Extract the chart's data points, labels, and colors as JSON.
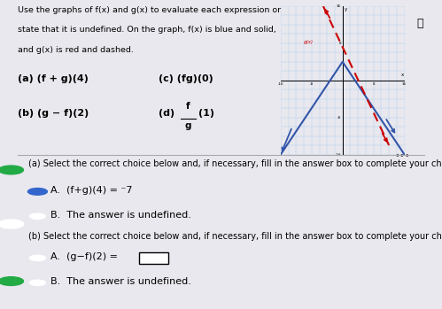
{
  "title_line1": "Use the graphs of f(x) and g(x) to evaluate each expression or",
  "title_line2": "state that it is undefined. On the graph, f(x) is blue and solid,",
  "title_line3": "and g(x) is red and dashed.",
  "prob_a": "(a) (f + g)(4)",
  "prob_b": "(b) (g − f)(2)",
  "prob_c": "(c) (fg)(0)",
  "f_color": "#3355aa",
  "g_color": "#cc0000",
  "bg_color": "#e8e8ee",
  "white": "#ffffff",
  "graph_bg": "#ddeeff",
  "section_a_header": "(a) Select the correct choice below and, if necessary, fill in the answer box to complete your choice.",
  "section_b_header": "(b) Select the correct choice below and, if necessary, fill in the answer box to complete your choice.",
  "ans_a_text": "(f+g)(4) = ⁻7",
  "ans_b_undef": "The answer is undefined.",
  "ans_b_text": "(g−f)(2) =",
  "green": "#22aa44",
  "blue_radio": "#3366cc",
  "divider": "#aaaaaa"
}
